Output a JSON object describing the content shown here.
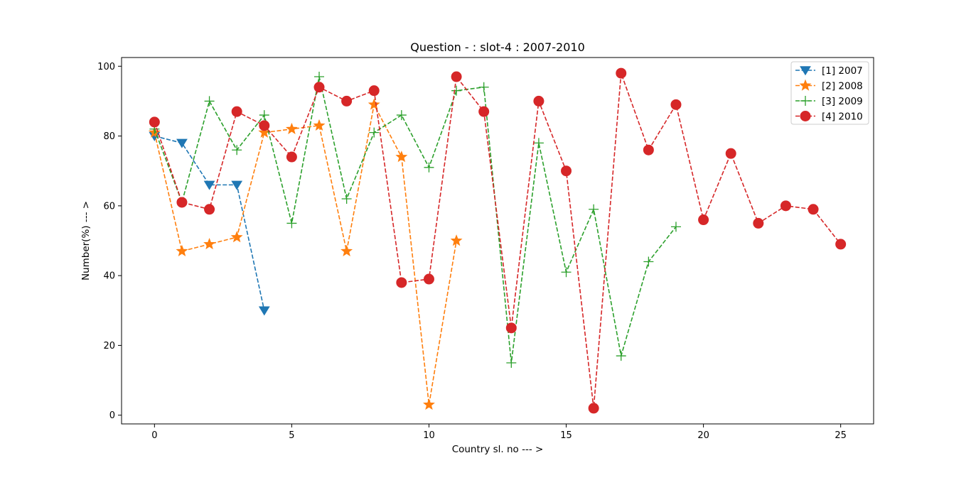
{
  "chart_data": {
    "type": "line",
    "title": "Question - : slot-4 : 2007-2010",
    "xlabel": "Country sl. no --- >",
    "ylabel": "Number(%) --- >",
    "xlim": [
      -1.2,
      26.2
    ],
    "ylim": [
      -2.5,
      102.5
    ],
    "xticks": [
      0,
      5,
      10,
      15,
      20,
      25
    ],
    "yticks": [
      0,
      20,
      40,
      60,
      80,
      100
    ],
    "grid": false,
    "legend_position": "upper right",
    "series": [
      {
        "name": "[1] 2007",
        "color": "#1f77b4",
        "marker": "triangle-down",
        "linestyle": "dashed",
        "x": [
          0,
          1,
          2,
          3,
          4
        ],
        "y": [
          80,
          78,
          66,
          66,
          30
        ]
      },
      {
        "name": "[2] 2008",
        "color": "#ff7f0e",
        "marker": "star",
        "linestyle": "dashed",
        "x": [
          0,
          1,
          2,
          3,
          4,
          5,
          6,
          7,
          8,
          9,
          10,
          11
        ],
        "y": [
          81,
          47,
          49,
          51,
          81,
          82,
          83,
          47,
          89,
          74,
          3,
          50
        ]
      },
      {
        "name": "[3] 2009",
        "color": "#2ca02c",
        "marker": "plus",
        "linestyle": "dashed",
        "x": [
          0,
          1,
          2,
          3,
          4,
          5,
          6,
          7,
          8,
          9,
          10,
          11,
          12,
          13,
          14,
          15,
          16,
          17,
          18,
          19
        ],
        "y": [
          82,
          61,
          90,
          76,
          86,
          55,
          97,
          62,
          81,
          86,
          71,
          93,
          94,
          15,
          78,
          41,
          59,
          17,
          44,
          54
        ]
      },
      {
        "name": "[4] 2010",
        "color": "#d62728",
        "marker": "circle",
        "linestyle": "dashed",
        "x": [
          0,
          1,
          2,
          3,
          4,
          5,
          6,
          7,
          8,
          9,
          10,
          11,
          12,
          13,
          14,
          15,
          16,
          17,
          18,
          19,
          20,
          21,
          22,
          23,
          24,
          25
        ],
        "y": [
          84,
          61,
          59,
          87,
          83,
          74,
          94,
          90,
          93,
          38,
          39,
          97,
          87,
          25,
          90,
          70,
          2,
          98,
          76,
          89,
          56,
          75,
          55,
          60,
          59,
          49
        ]
      }
    ]
  }
}
